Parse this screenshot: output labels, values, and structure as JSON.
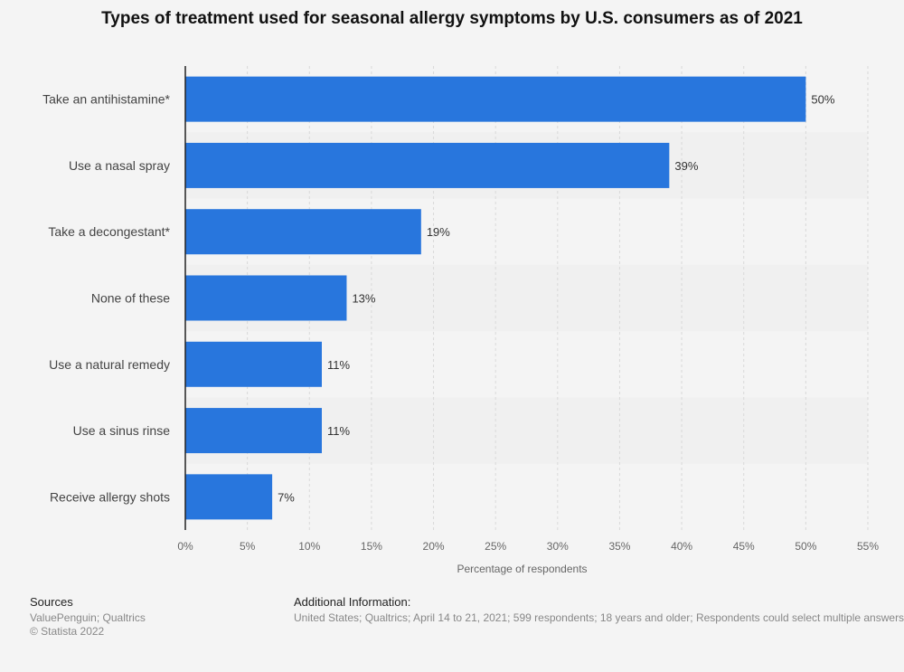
{
  "title": "Types of treatment used for seasonal allergy symptoms by U.S. consumers as of 2021",
  "colors": {
    "bar": "#2876dd",
    "grid": "#d9d9d9",
    "band": "#ececec",
    "axis": "#222222"
  },
  "chart_data": {
    "type": "bar",
    "orientation": "horizontal",
    "categories": [
      "Take an antihistamine*",
      "Use a nasal spray",
      "Take a decongestant*",
      "None of these",
      "Use a natural remedy",
      "Use a sinus rinse",
      "Receive allergy shots"
    ],
    "values": [
      50,
      39,
      19,
      13,
      11,
      11,
      7
    ],
    "value_labels": [
      "50%",
      "39%",
      "19%",
      "13%",
      "11%",
      "11%",
      "7%"
    ],
    "xlim": [
      0,
      55
    ],
    "xticks": [
      0,
      5,
      10,
      15,
      20,
      25,
      30,
      35,
      40,
      45,
      50,
      55
    ],
    "xtick_labels": [
      "0%",
      "5%",
      "10%",
      "15%",
      "20%",
      "25%",
      "30%",
      "35%",
      "40%",
      "45%",
      "50%",
      "55%"
    ],
    "xlabel": "Percentage of respondents",
    "grid": true
  },
  "footer": {
    "sources_heading": "Sources",
    "sources_line1": "ValuePenguin; Qualtrics",
    "sources_line2": "© Statista 2022",
    "info_heading": "Additional Information:",
    "info_text": "United States; Qualtrics; April 14 to 21, 2021; 599 respondents; 18 years and older; Respondents could select multiple answers"
  }
}
